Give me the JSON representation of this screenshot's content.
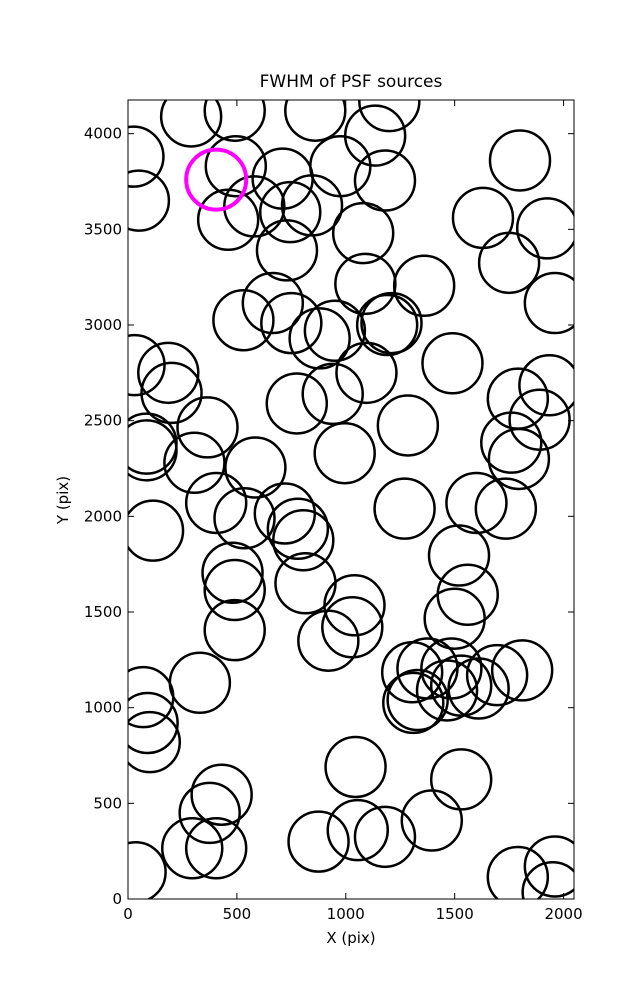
{
  "chart_data": {
    "type": "scatter",
    "title": "FWHM of PSF sources",
    "x_label": "X (pix)",
    "y_label": "Y (pix)",
    "xlim": [
      0,
      2048
    ],
    "ylim": [
      0,
      4176
    ],
    "xticks": [
      0,
      500,
      1000,
      1500,
      2000
    ],
    "yticks": [
      0,
      500,
      1000,
      1500,
      2000,
      2500,
      3000,
      3500,
      4000
    ],
    "grid": false,
    "series": [
      {
        "color": "#000000",
        "x": [
          25,
          50,
          290,
          490,
          495,
          460,
          580,
          710,
          745,
          845,
          730,
          860,
          975,
          1135,
          1200,
          1180,
          1080,
          1090,
          1360,
          1630,
          1800,
          1750,
          1925,
          1960,
          1935,
          1890,
          1790,
          1760,
          1795,
          1735,
          1600,
          1520,
          1560,
          1500,
          1490,
          1285,
          1270,
          1190,
          1210,
          530,
          665,
          750,
          880,
          950,
          1095,
          940,
          775,
          995,
          30,
          185,
          200,
          365,
          85,
          85,
          305,
          585,
          405,
          535,
          115,
          720,
          780,
          805,
          815,
          480,
          490,
          490,
          1040,
          1030,
          920,
          330,
          70,
          90,
          100,
          1305,
          1375,
          1485,
          1330,
          1310,
          1465,
          1530,
          1610,
          1695,
          1810,
          1045,
          1530,
          430,
          375,
          295,
          405,
          875,
          1055,
          1180,
          1395,
          35,
          1790,
          1960,
          1950
        ],
        "values": [
          3880,
          3650,
          4090,
          4120,
          3830,
          3550,
          3620,
          3765,
          3590,
          3625,
          3390,
          4120,
          3830,
          3990,
          4170,
          3755,
          3480,
          3215,
          3205,
          3560,
          3860,
          3325,
          3505,
          3115,
          2685,
          2505,
          2615,
          2385,
          2300,
          2040,
          2070,
          1795,
          1590,
          1465,
          2800,
          2475,
          2040,
          3000,
          3010,
          3025,
          3115,
          3010,
          2930,
          2970,
          2750,
          2640,
          2590,
          2330,
          2790,
          2750,
          2645,
          2465,
          2380,
          2345,
          2280,
          2255,
          2070,
          1990,
          1925,
          2015,
          1935,
          1875,
          1650,
          1705,
          1615,
          1405,
          1535,
          1420,
          1350,
          1130,
          1055,
          920,
          820,
          1185,
          1205,
          1205,
          1040,
          1025,
          1090,
          1115,
          1100,
          1170,
          1195,
          690,
          625,
          545,
          450,
          265,
          265,
          300,
          360,
          325,
          410,
          140,
          115,
          170,
          35
        ]
      },
      {
        "color": "#ff00ff",
        "x": [
          405
        ],
        "values": [
          3760
        ]
      }
    ]
  }
}
